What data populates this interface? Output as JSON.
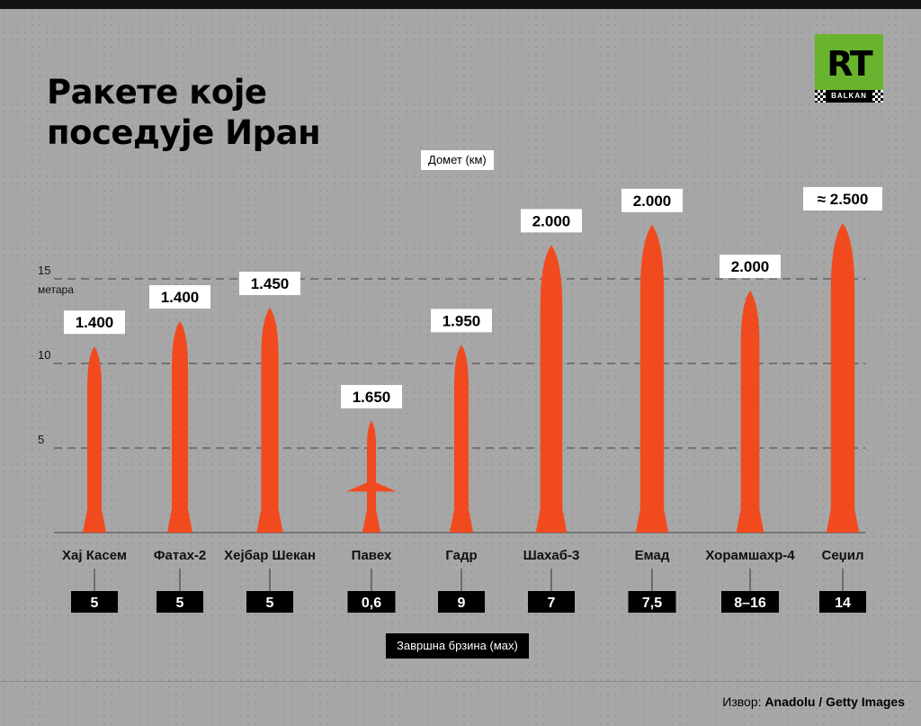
{
  "title_lines": [
    "Ракете које",
    "поседује Иран"
  ],
  "logo": {
    "main": "RT",
    "sub": "BALKAN",
    "color": "#69b42e"
  },
  "range_label": "Домет (км)",
  "speed_label": "Завршна брзина (мах)",
  "source": {
    "prefix": "Извор: ",
    "text": "Anadolu / Getty Images"
  },
  "chart_data": {
    "type": "bar",
    "title": "Ракете које поседује Иран",
    "ylabel": "метара",
    "ylim": [
      0,
      15
    ],
    "y_ticks": [
      5,
      10,
      15
    ],
    "grid": true,
    "bar_color": "#f24a1f",
    "categories": [
      "Хај Касем",
      "Фатах-2",
      "Хејбар Шекан",
      "Павех",
      "Гадр",
      "Шахаб-3",
      "Емад",
      "Хорамшахр-4",
      "Сеџил"
    ],
    "length_m": [
      11,
      12.5,
      13.3,
      6.6,
      11.1,
      17,
      18.2,
      14.3,
      18.3
    ],
    "range_labels": [
      "1.400",
      "1.400",
      "1.450",
      "1.650",
      "1.950",
      "2.000",
      "2.000",
      "2.000",
      "≈ 2.500"
    ],
    "speed_labels": [
      "5",
      "5",
      "5",
      "0,6",
      "9",
      "7",
      "7,5",
      "8–16",
      "14"
    ]
  }
}
